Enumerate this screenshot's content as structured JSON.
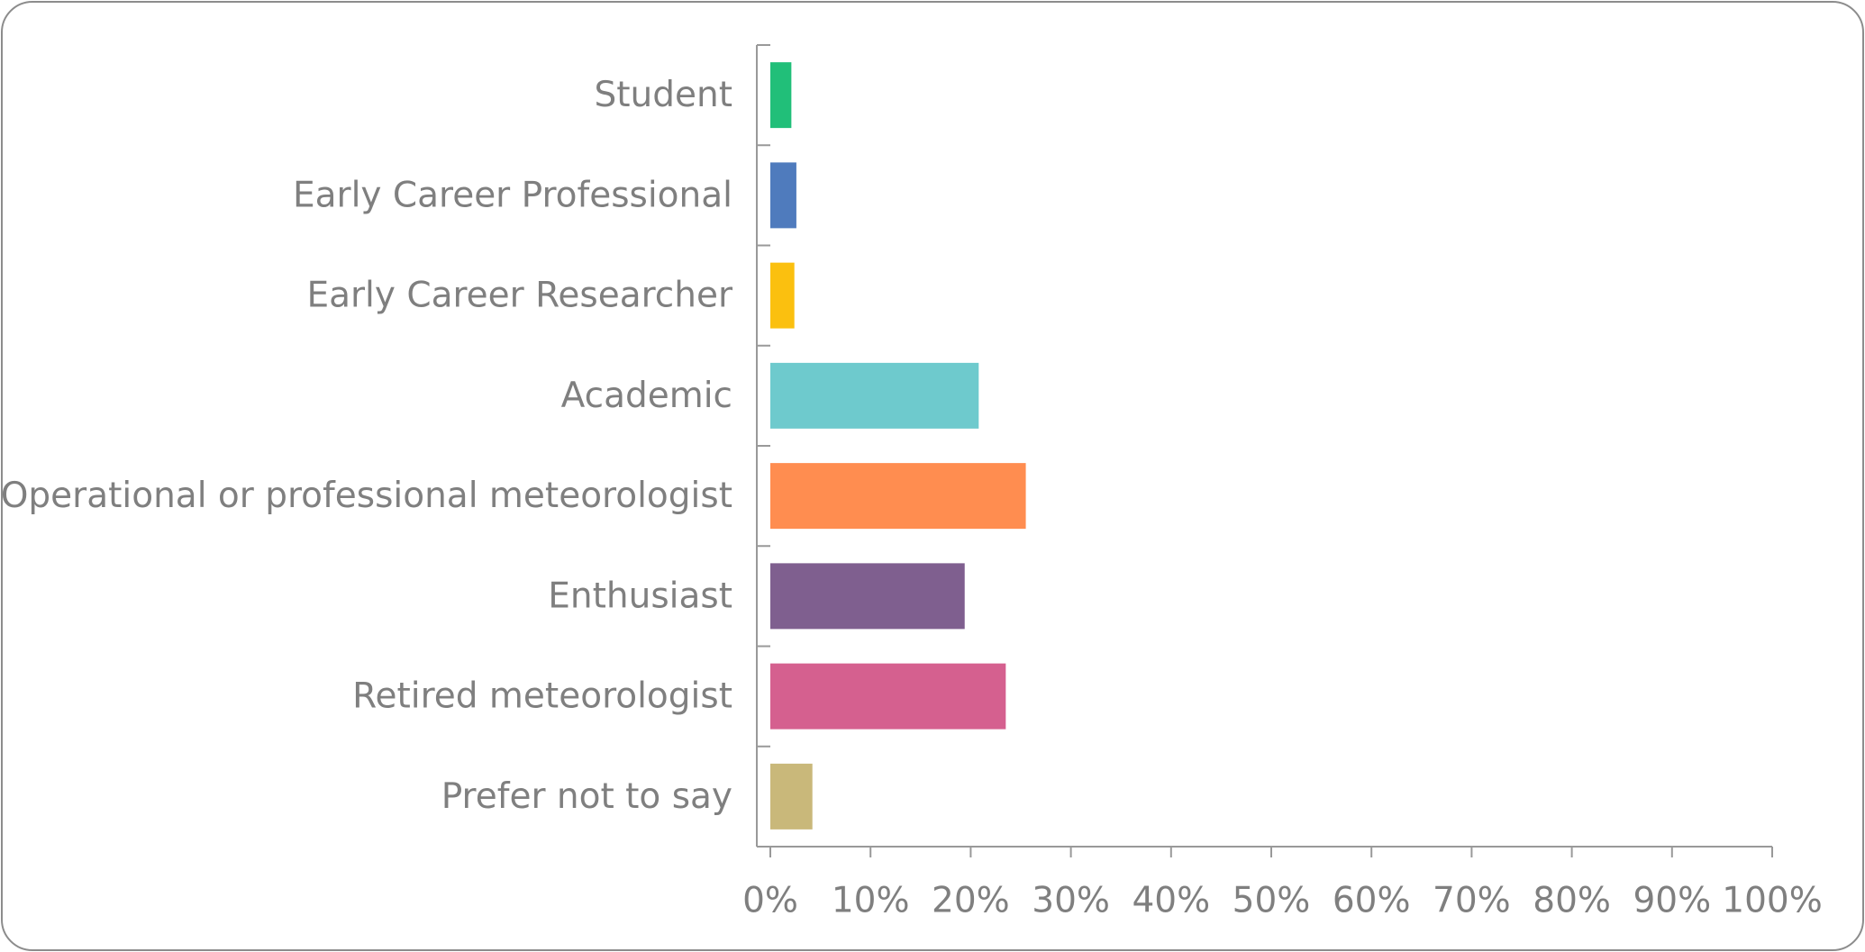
{
  "chart_data": {
    "type": "hbar",
    "categories": [
      "Student",
      "Early Career Professional",
      "Early Career Researcher",
      "Academic",
      "Operational or professional meteorologist",
      "Enthusiast",
      "Retired meteorologist",
      "Prefer not to say"
    ],
    "values": [
      2.1,
      2.6,
      2.4,
      20.8,
      25.5,
      19.4,
      23.5,
      4.2
    ],
    "colors": [
      "#21bf79",
      "#4f7bbd",
      "#fbc00f",
      "#6ecacd",
      "#ff8d50",
      "#7f5f8f",
      "#d5608f",
      "#c9b87a"
    ],
    "xlim": [
      0,
      100
    ],
    "xticks": [
      {
        "value": 0,
        "label": "0%"
      },
      {
        "value": 10,
        "label": "10%"
      },
      {
        "value": 20,
        "label": "20%"
      },
      {
        "value": 30,
        "label": "30%"
      },
      {
        "value": 40,
        "label": "40%"
      },
      {
        "value": 50,
        "label": "50%"
      },
      {
        "value": 60,
        "label": "60%"
      },
      {
        "value": 70,
        "label": "70%"
      },
      {
        "value": 80,
        "label": "80%"
      },
      {
        "value": 90,
        "label": "90%"
      },
      {
        "value": 100,
        "label": "100%"
      }
    ]
  }
}
